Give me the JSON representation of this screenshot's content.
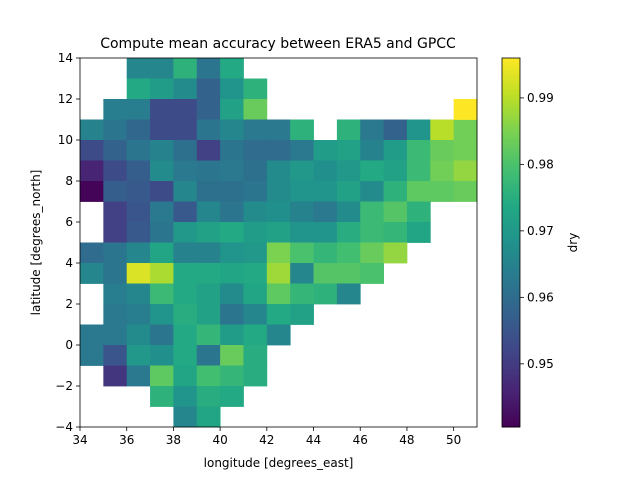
{
  "chart_data": {
    "type": "heatmap",
    "title": "Compute mean accuracy between ERA5 and GPCC",
    "xlabel": "longitude [degrees_east]",
    "ylabel": "latitude [degrees_north]",
    "colorbar_label": "dry",
    "colormap": "viridis",
    "xlim": [
      34,
      51
    ],
    "ylim": [
      -4,
      14
    ],
    "xticks": [
      34,
      36,
      38,
      40,
      42,
      44,
      46,
      48,
      50
    ],
    "yticks": [
      -4,
      -2,
      0,
      2,
      4,
      6,
      8,
      10,
      12,
      14
    ],
    "colorbar_range": [
      0.9405,
      0.996
    ],
    "colorbar_ticks": [
      0.95,
      0.96,
      0.97,
      0.98,
      0.99
    ],
    "grid": false,
    "cell_size_deg": 1,
    "lon_edges_start": 34,
    "lat_edges_start": -4,
    "rows": [
      {
        "lat": 13,
        "lon_start": 36,
        "values": [
          0.966,
          0.966,
          0.976,
          0.962,
          0.974
        ]
      },
      {
        "lat": 12,
        "lon_start": 36,
        "values": [
          0.974,
          0.971,
          0.967,
          0.958,
          0.969,
          0.976
        ]
      },
      {
        "lat": 11,
        "lon_start": 35,
        "values": [
          0.964,
          0.964,
          0.953,
          0.953,
          0.958,
          0.972,
          0.983
        ]
      },
      {
        "lat": 10,
        "lon_start": 34,
        "values": [
          0.965,
          0.962,
          0.959,
          0.953,
          0.953,
          0.962,
          0.966,
          0.963,
          0.963,
          0.976,
          null,
          0.976,
          0.963,
          0.958,
          0.969,
          0.99,
          0.984
        ]
      },
      {
        "lat": 9,
        "lon_start": 34,
        "values": [
          0.953,
          0.958,
          0.962,
          0.965,
          0.961,
          0.951,
          0.962,
          0.96,
          0.96,
          0.963,
          0.971,
          0.972,
          0.965,
          0.971,
          0.978,
          0.983,
          0.984
        ]
      },
      {
        "lat": 8,
        "lon_start": 34,
        "values": [
          0.946,
          0.953,
          0.957,
          0.967,
          0.963,
          0.962,
          0.963,
          0.961,
          0.967,
          0.97,
          0.968,
          0.97,
          0.974,
          0.972,
          0.978,
          0.984,
          0.987
        ]
      },
      {
        "lat": 7,
        "lon_start": 34,
        "values": [
          0.941,
          0.957,
          0.956,
          0.953,
          0.966,
          0.961,
          0.961,
          0.962,
          0.967,
          0.969,
          0.969,
          0.972,
          0.967,
          0.976,
          0.982,
          0.982,
          0.983
        ]
      },
      {
        "lat": 6,
        "lon_start": 35,
        "values": [
          0.951,
          0.955,
          0.963,
          0.956,
          0.966,
          0.962,
          0.967,
          0.968,
          0.965,
          0.963,
          0.967,
          0.978,
          0.981,
          0.976
        ]
      },
      {
        "lat": 5,
        "lon_start": 35,
        "values": [
          0.951,
          0.956,
          0.962,
          0.97,
          0.972,
          0.974,
          0.971,
          0.972,
          0.969,
          0.969,
          0.975,
          0.978,
          0.977,
          0.973
        ]
      },
      {
        "lat": 4,
        "lon_start": 34,
        "values": [
          0.96,
          0.962,
          0.966,
          0.973,
          0.965,
          0.965,
          0.969,
          0.97,
          0.985,
          0.98,
          0.977,
          0.979,
          0.983,
          0.987
        ]
      },
      {
        "lat": 3,
        "lon_start": 34,
        "values": [
          0.966,
          0.962,
          0.993,
          0.989,
          0.974,
          0.974,
          0.973,
          0.974,
          0.988,
          0.966,
          0.981,
          0.981,
          0.98
        ]
      },
      {
        "lat": 2,
        "lon_start": 35,
        "values": [
          0.964,
          0.966,
          0.978,
          0.974,
          0.972,
          0.967,
          0.973,
          0.982,
          0.977,
          0.976,
          0.966
        ]
      },
      {
        "lat": 1,
        "lon_start": 35,
        "values": [
          0.963,
          0.964,
          0.969,
          0.975,
          0.972,
          0.962,
          0.966,
          0.974,
          0.972
        ]
      },
      {
        "lat": 0,
        "lon_start": 34,
        "values": [
          0.963,
          0.963,
          0.967,
          0.962,
          0.974,
          0.977,
          0.971,
          0.974,
          0.966
        ]
      },
      {
        "lat": -1,
        "lon_start": 34,
        "values": [
          0.963,
          0.955,
          0.97,
          0.968,
          0.974,
          0.962,
          0.983,
          0.975
        ]
      },
      {
        "lat": -2,
        "lon_start": 35,
        "values": [
          0.949,
          0.963,
          0.982,
          0.973,
          0.979,
          0.977,
          0.975
        ]
      },
      {
        "lat": -3,
        "lon_start": 37,
        "values": [
          0.976,
          0.969,
          0.975,
          0.974
        ]
      },
      {
        "lat": -4,
        "lon_start": 38,
        "values": [
          0.966,
          0.973
        ]
      }
    ],
    "extra_cells": [
      {
        "lon": 50,
        "lat": 11,
        "value": 0.996
      }
    ]
  }
}
